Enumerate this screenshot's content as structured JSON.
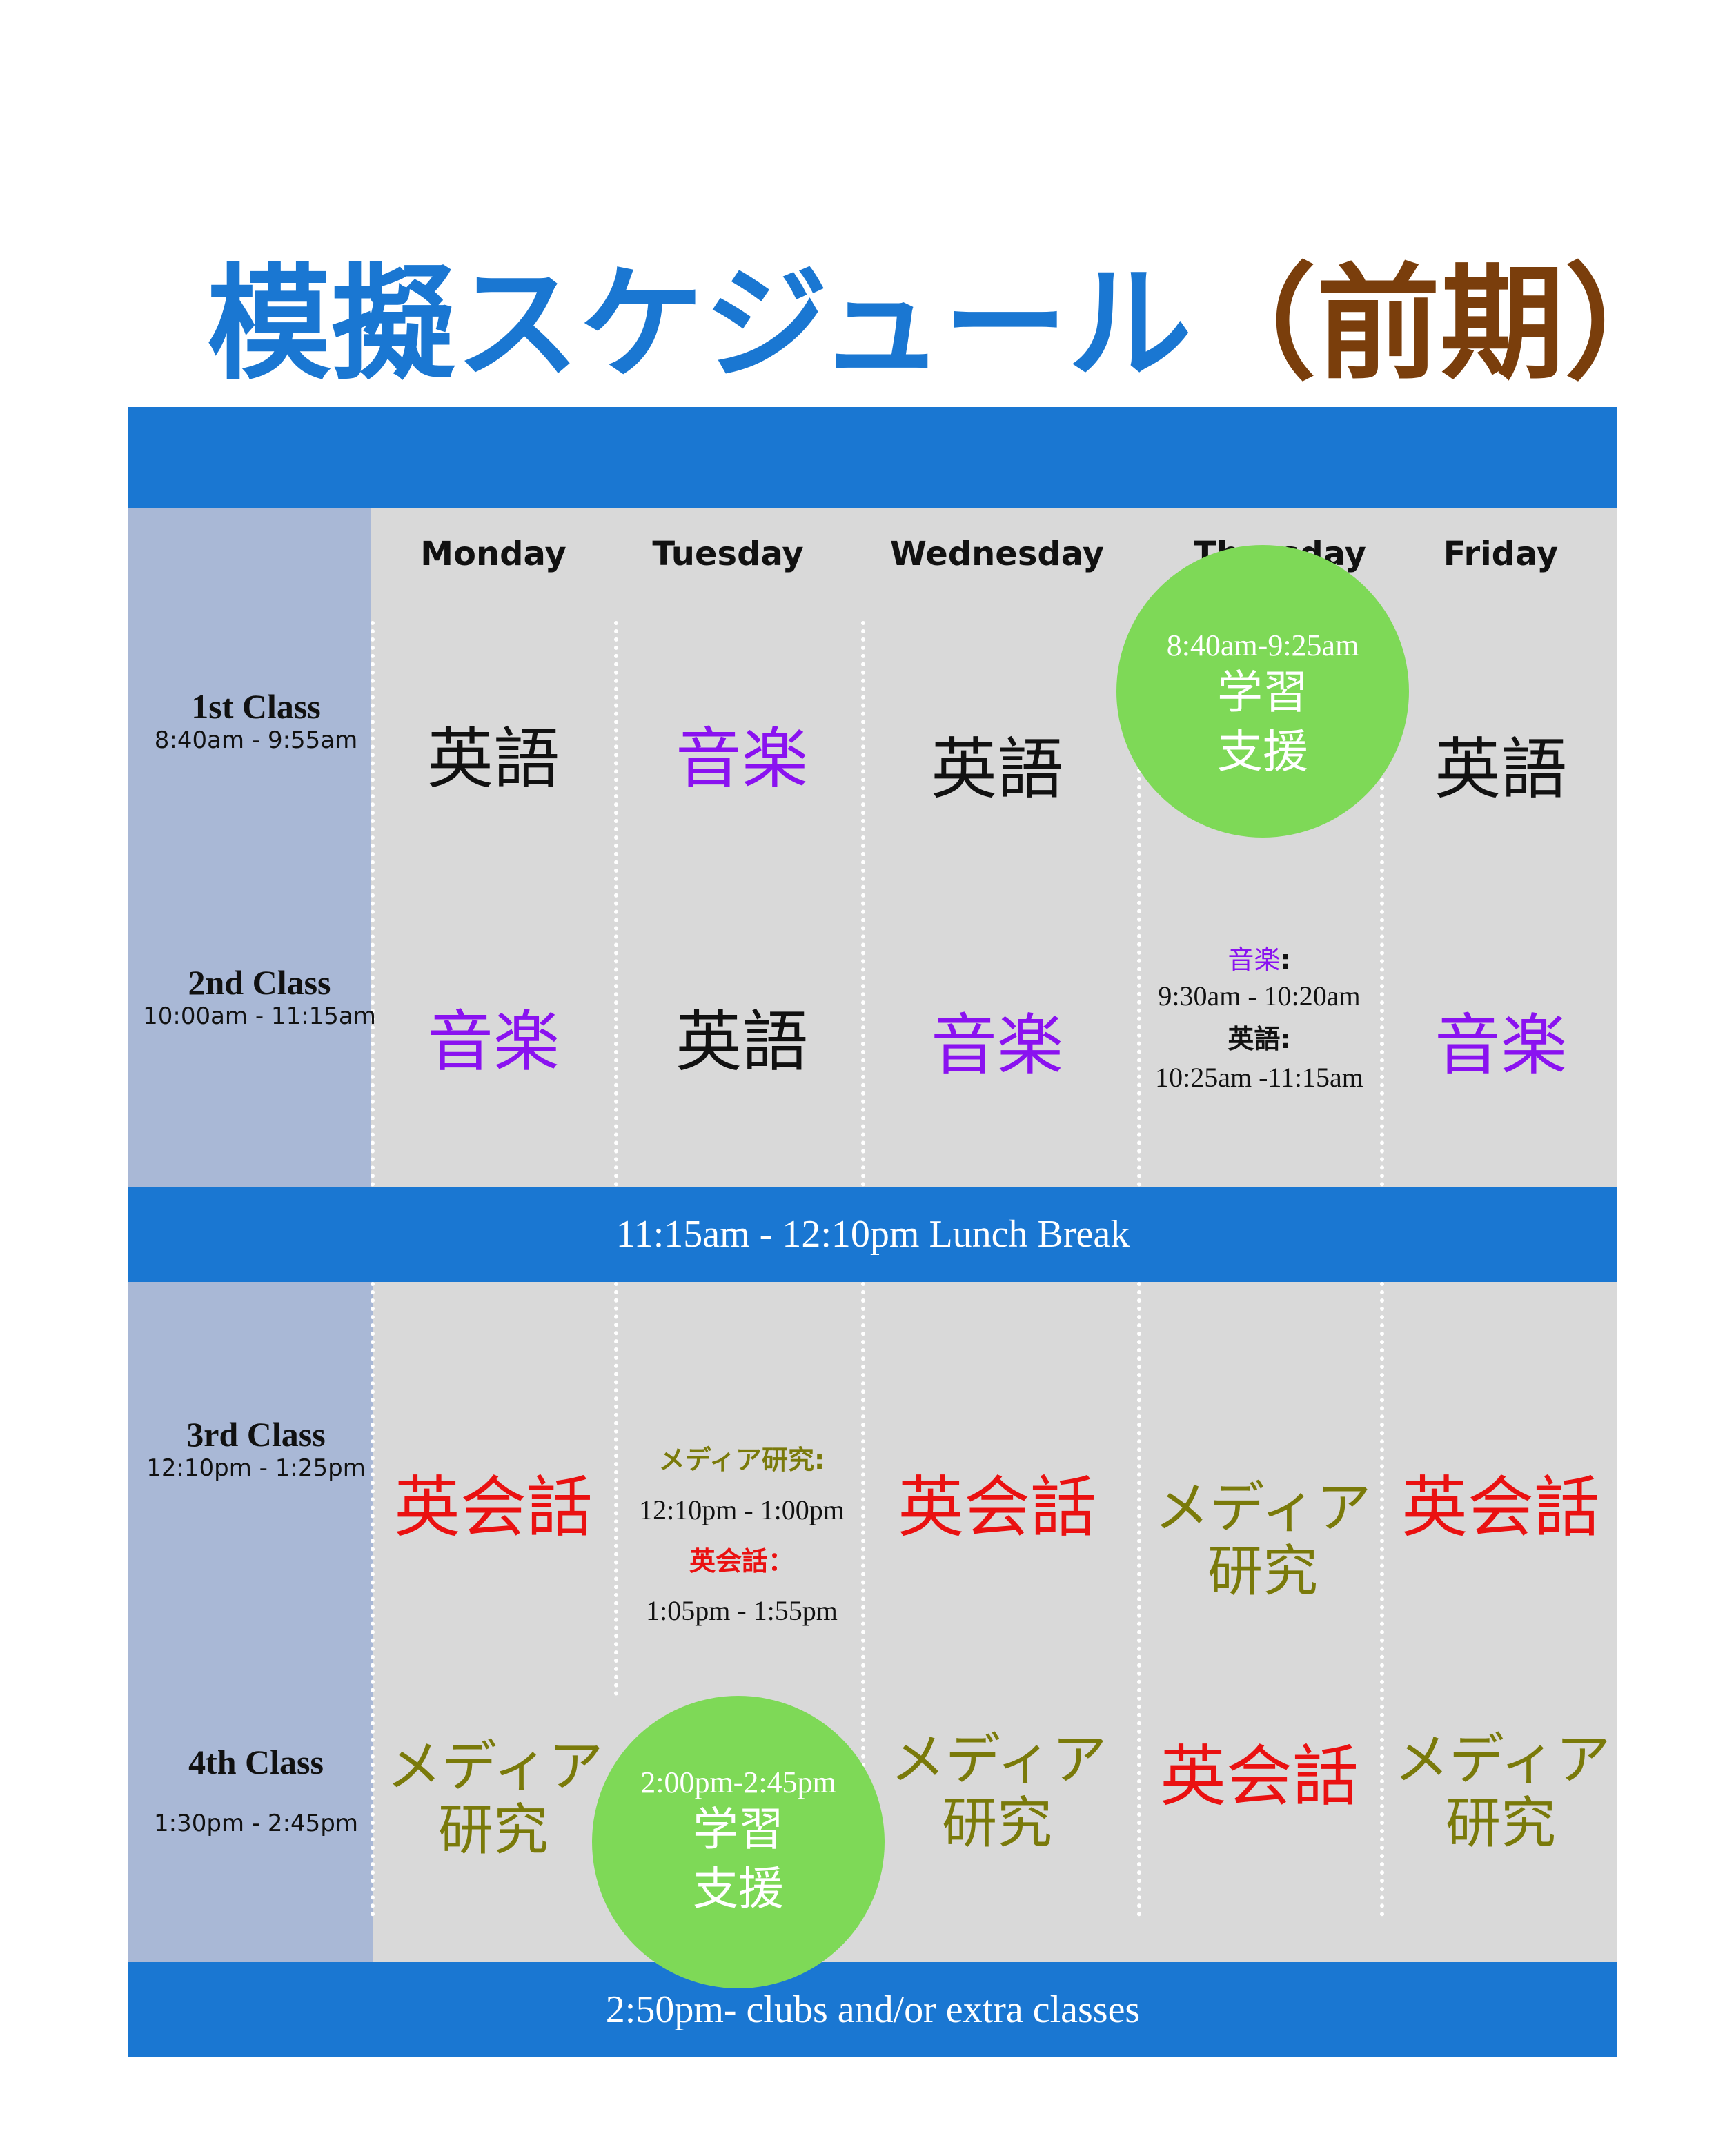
{
  "title": {
    "main": "模擬スケジュール",
    "sub": "（前期）"
  },
  "days": [
    "Monday",
    "Tuesday",
    "Wednesday",
    "Thursday",
    "Friday"
  ],
  "periods": [
    {
      "name": "1st Class",
      "time": "8:40am - 9:55am"
    },
    {
      "name": "2nd Class",
      "time": "10:00am - 11:15am"
    },
    {
      "name": "3rd Class",
      "time": "12:10pm - 1:25pm"
    },
    {
      "name": "4th Class",
      "time": "1:30pm - 2:45pm"
    }
  ],
  "subjects": {
    "english": "英語",
    "music": "音楽",
    "conversation": "英会話",
    "media_line1": "メディア",
    "media_line2": "研究",
    "study_line1": "学習",
    "study_line2": "支援"
  },
  "thursday_p1_time": "8:40am-9:25am",
  "thursday_p2": {
    "music_label": "音楽",
    "colon": ":",
    "music_time": "9:30am - 10:20am",
    "english_label": "英語:",
    "english_time": "10:25am -11:15am"
  },
  "tuesday_p3": {
    "media_label": "メディア研究:",
    "media_time": "12:10pm - 1:00pm",
    "conv_label": "英会話：",
    "conv_time": "1:05pm - 1:55pm"
  },
  "tuesday_p4_time": "2:00pm-2:45pm",
  "lunch": "11:15am - 12:10pm Lunch Break",
  "footer": "2:50pm- clubs and/or extra classes",
  "colors": {
    "blue_bar": "#1a77d2",
    "panel": "#d9d9d9",
    "sidebar": "#a9b8d6",
    "circle": "#7ed957",
    "english": "#111111",
    "music": "#8a12f0",
    "conversation": "#ea1111",
    "media": "#7a7a0a",
    "title_sub": "#7a3e0c"
  }
}
